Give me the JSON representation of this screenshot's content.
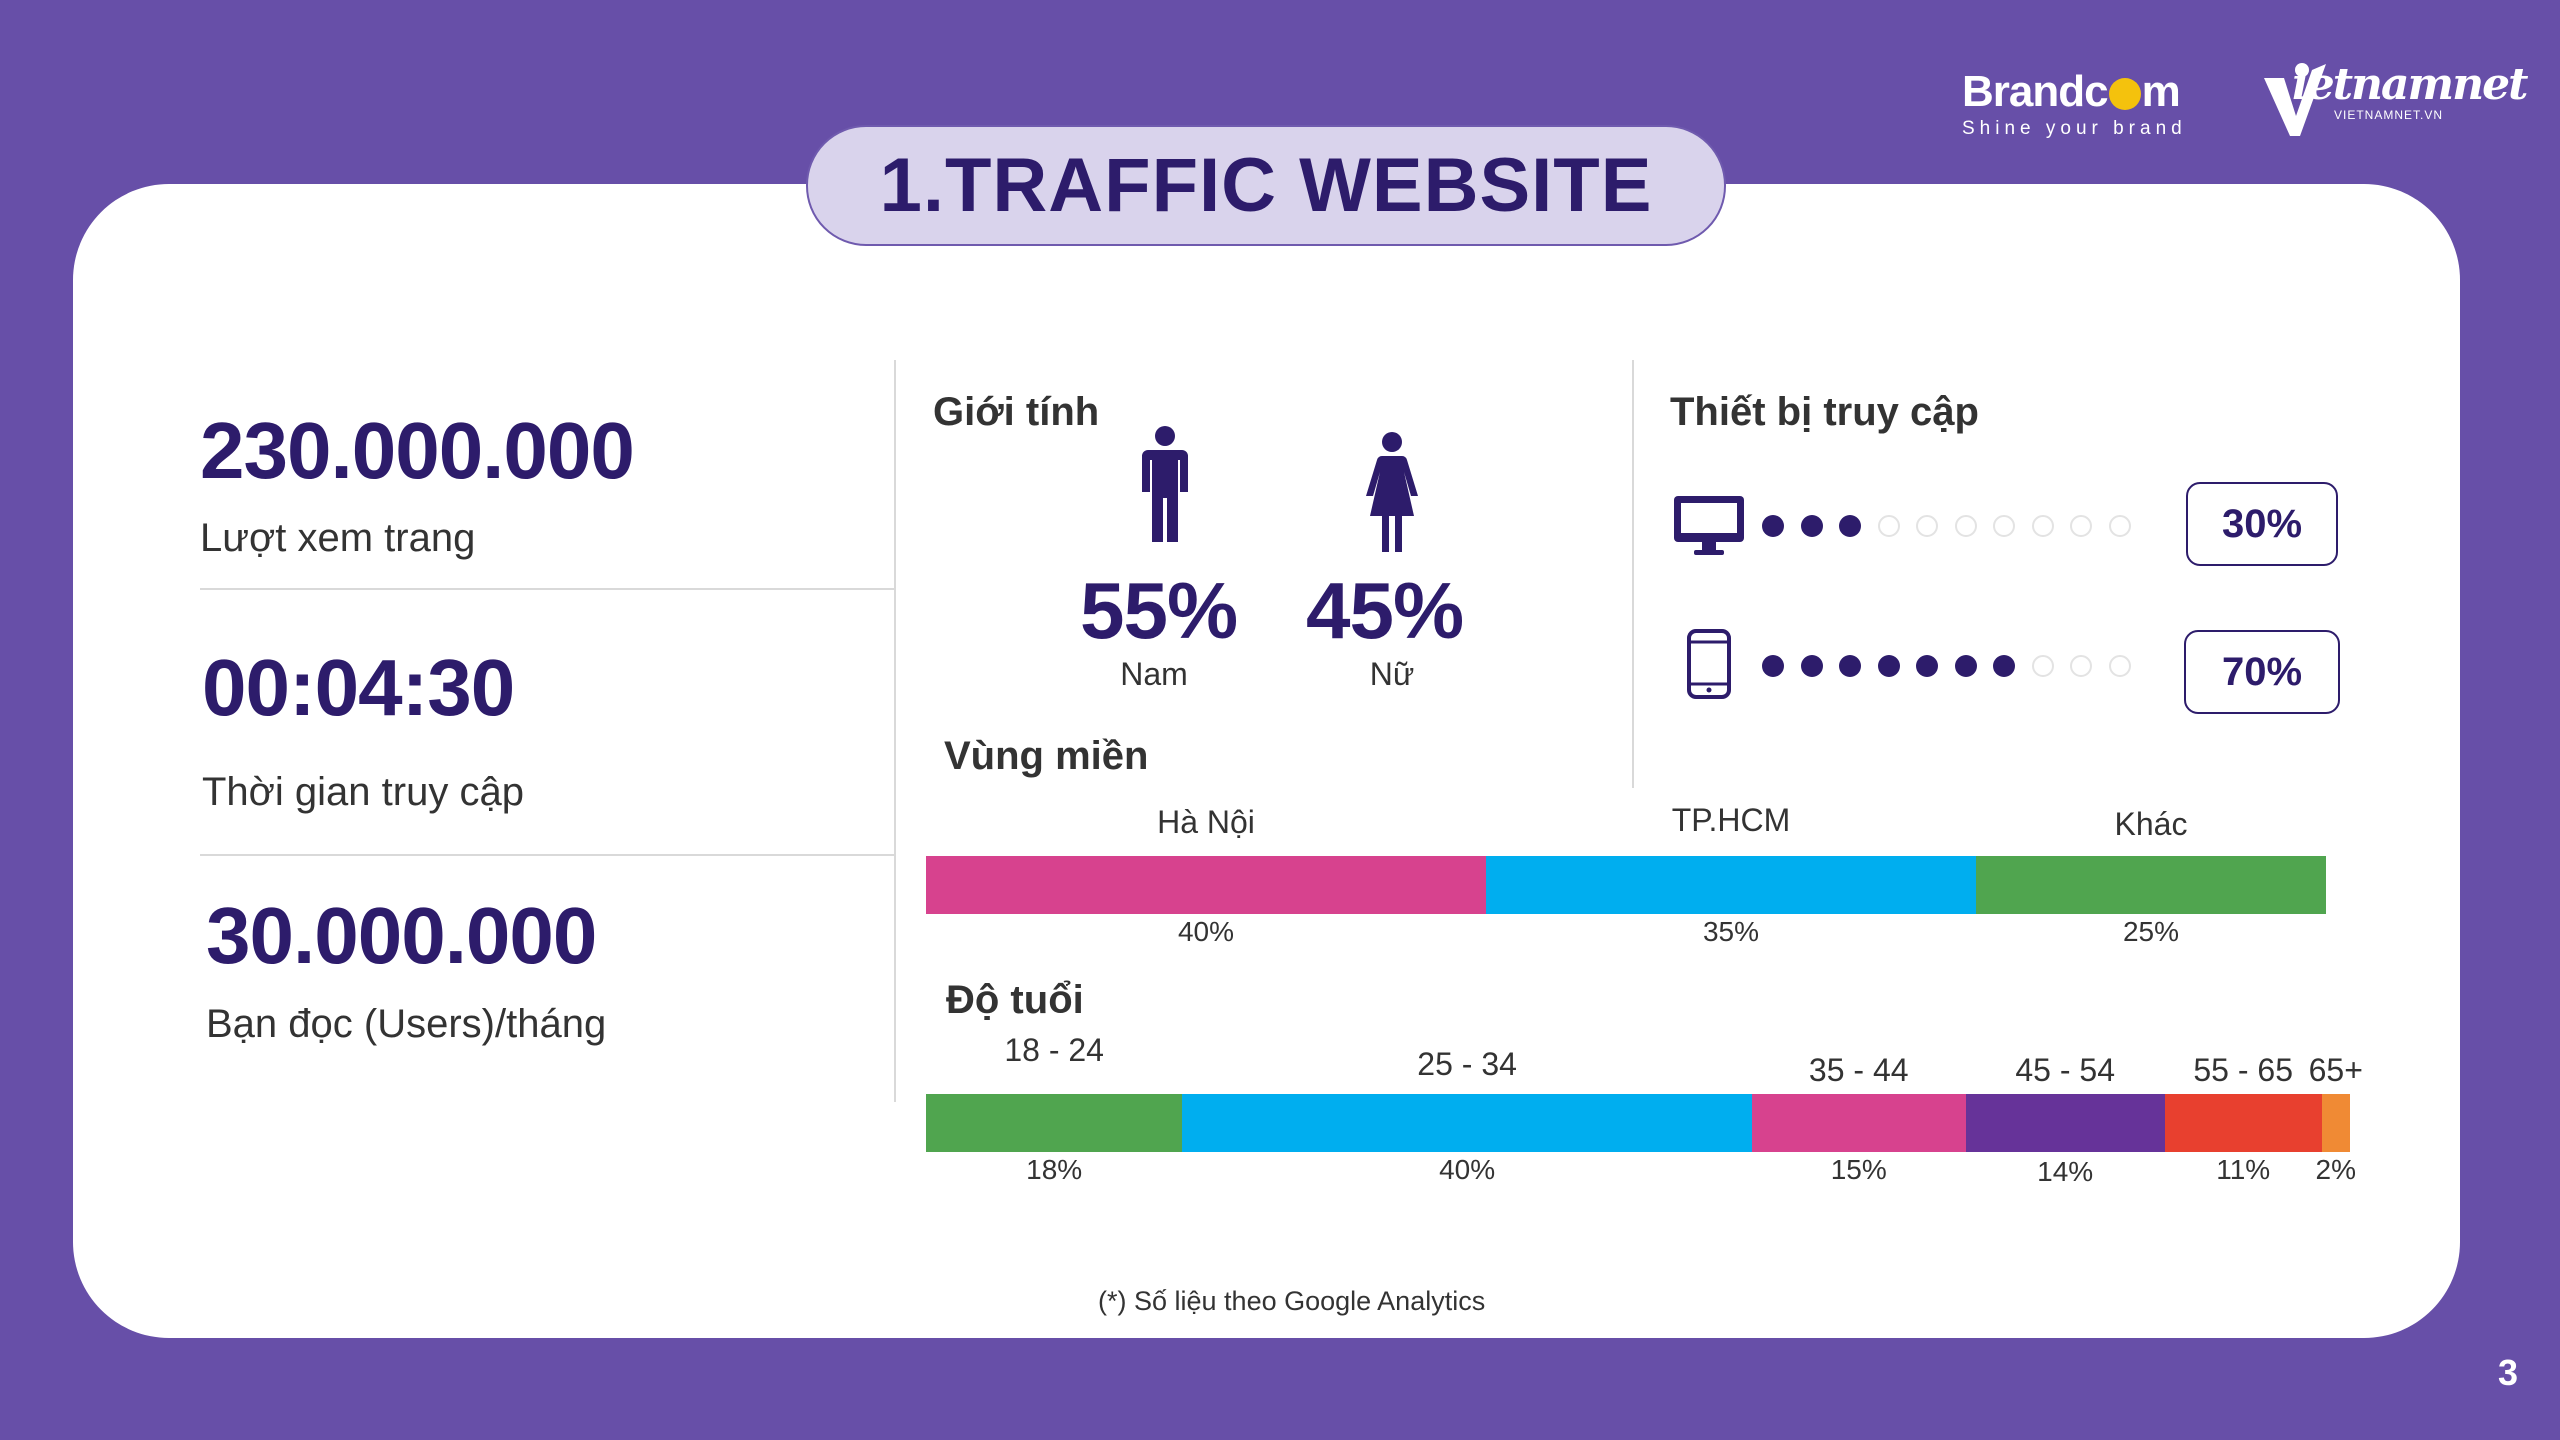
{
  "logos": {
    "brandcom": {
      "word_left": "Brandc",
      "word_right": "m",
      "tagline": "Shine your brand"
    },
    "vietnamnet": {
      "word": "ietnamnet",
      "url": "VIETNAMNET.VN"
    }
  },
  "title": "1.TRAFFIC WEBSITE",
  "stats": [
    {
      "value": "230.000.000",
      "label": "Lượt xem trang"
    },
    {
      "value": "00:04:30",
      "label": "Thời gian truy cập"
    },
    {
      "value": "30.000.000",
      "label": "Bạn đọc (Users)/tháng"
    }
  ],
  "gender": {
    "title": "Giới tính",
    "male": {
      "pct": "55%",
      "label": "Nam",
      "icon": "male-person-icon"
    },
    "female": {
      "pct": "45%",
      "label": "Nữ",
      "icon": "female-person-icon"
    }
  },
  "devices": {
    "title": "Thiết bị truy cập",
    "items": [
      {
        "icon": "desktop-monitor-icon",
        "pct_label": "30%",
        "dots_on": 3,
        "dots_total": 10
      },
      {
        "icon": "smartphone-icon",
        "pct_label": "70%",
        "dots_on": 7,
        "dots_total": 10
      }
    ]
  },
  "region": {
    "title": "Vùng miền",
    "segments": [
      {
        "label": "Hà Nội",
        "pct_label": "40%",
        "value": 40,
        "color": "#d7428e"
      },
      {
        "label": "TP.HCM",
        "pct_label": "35%",
        "value": 35,
        "color": "#00aeef"
      },
      {
        "label": "Khác",
        "pct_label": "25%",
        "value": 25,
        "color": "#50a54f"
      }
    ]
  },
  "age": {
    "title": "Độ tuổi",
    "segments": [
      {
        "label": "18 - 24",
        "pct_label": "18%",
        "value": 18,
        "color": "#50a54f"
      },
      {
        "label": "25 - 34",
        "pct_label": "40%",
        "value": 40,
        "color": "#00aeef"
      },
      {
        "label": "35 - 44",
        "pct_label": "15%",
        "value": 15,
        "color": "#d7428e"
      },
      {
        "label": "45 - 54",
        "pct_label": "14%",
        "value": 14,
        "color": "#663399"
      },
      {
        "label": "55 - 65",
        "pct_label": "11%",
        "value": 11,
        "color": "#e8402f"
      },
      {
        "label": "65+",
        "pct_label": "2%",
        "value": 2,
        "color": "#f08a34"
      }
    ]
  },
  "footnote": "(*) Số liệu theo Google Analytics",
  "page_number": "3",
  "colors": {
    "background": "#674fa8",
    "primary": "#2d1c6b",
    "pill": "#d9d3ec"
  }
}
